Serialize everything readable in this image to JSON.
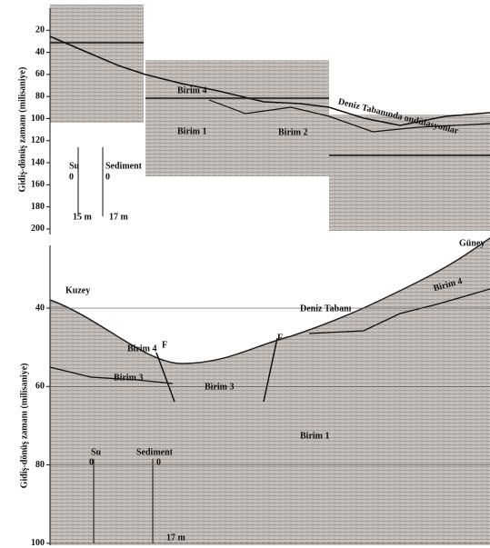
{
  "chart_data": [
    {
      "type": "seismic-section",
      "y_label": "Gidiş-dönüş zamanı (milisaniye)",
      "ylim": [
        0,
        205
      ],
      "yticks": [
        20,
        40,
        60,
        80,
        100,
        120,
        140,
        160,
        180,
        200
      ],
      "annotations": [
        "Birim 4",
        "Birim 1",
        "Birim 2",
        "Deniz Tabanında ondülasyonlar",
        "Su",
        "Sediment",
        "0",
        "0",
        "15 m",
        "17 m"
      ]
    },
    {
      "type": "seismic-section",
      "y_label": "Gidiş-dönüş zamanı (milisaniye)",
      "ylim": [
        24,
        100.5
      ],
      "yticks": [
        40,
        60,
        80,
        100
      ],
      "grid": true,
      "annotations": [
        "Güney",
        "Kuzey",
        "Deniz Tabanı",
        "Birim 4",
        "Birim 4",
        "Birim 3",
        "Birim 3",
        "F",
        "F",
        "Birim 1",
        "Su",
        "Sediment",
        "0",
        "0",
        "17 m"
      ]
    }
  ]
}
